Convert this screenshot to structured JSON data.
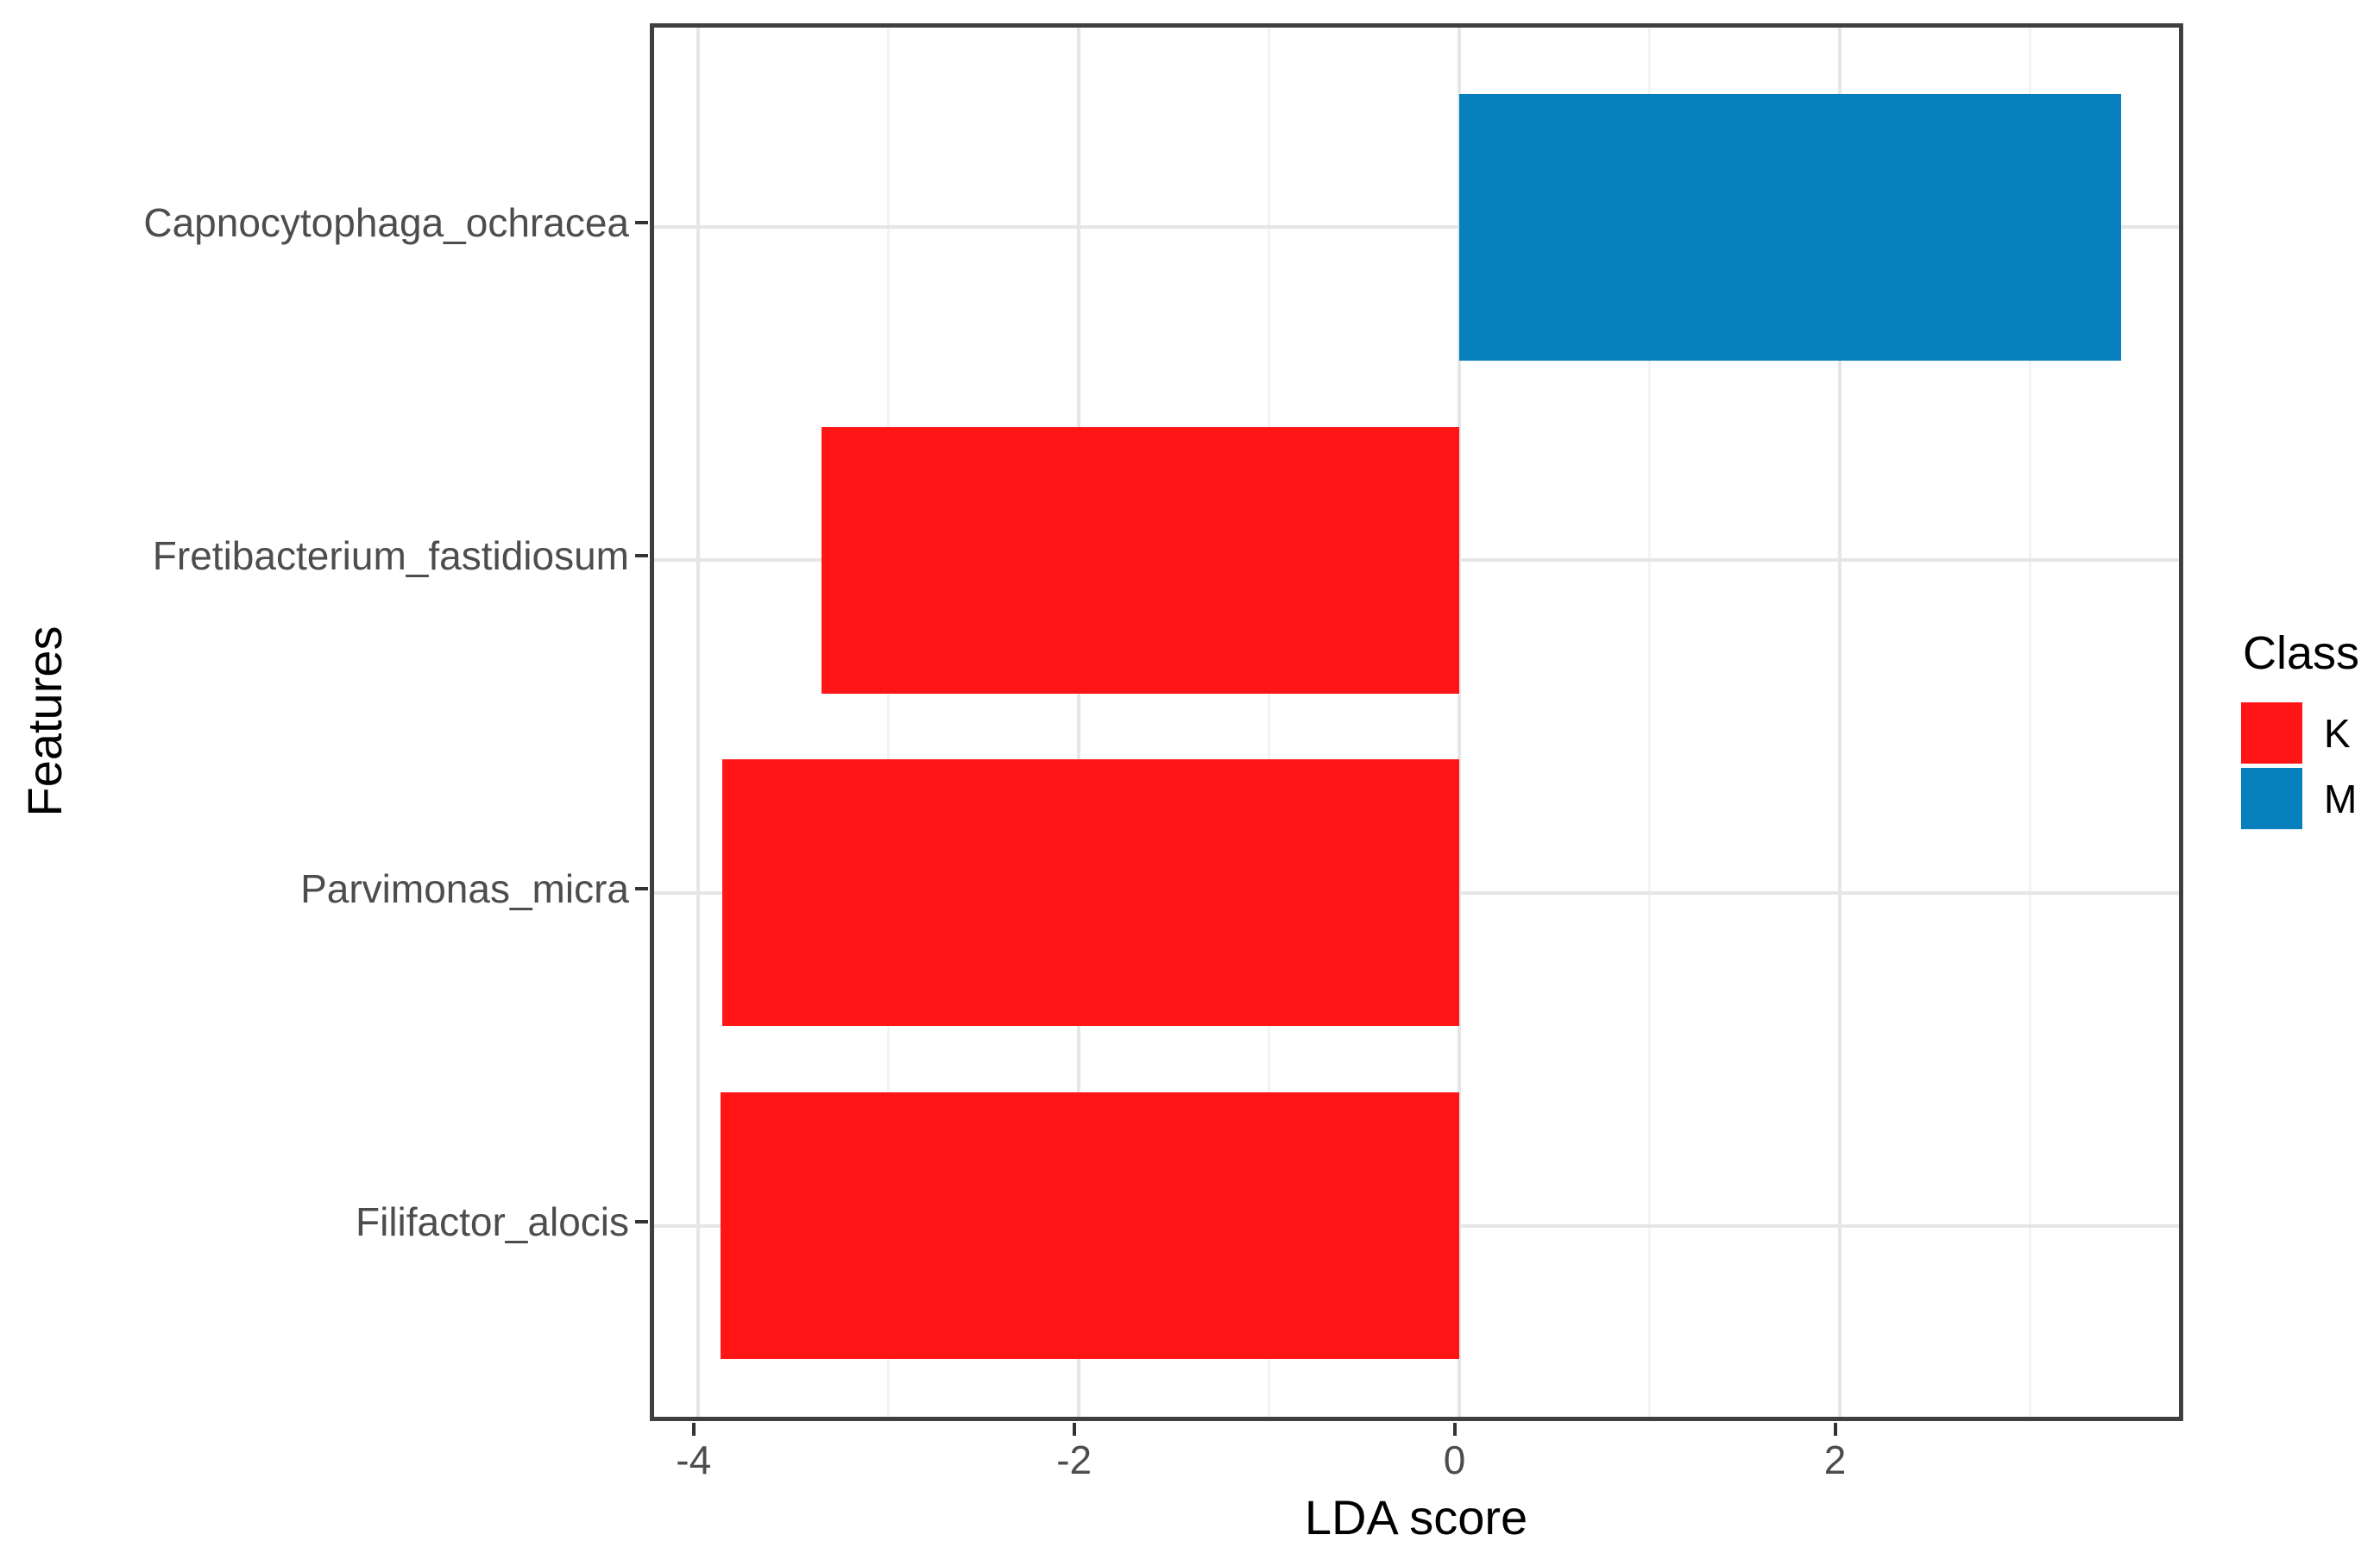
{
  "figure": {
    "x_axis_title": "LDA score",
    "y_axis_title": "Features",
    "legend": {
      "title": "Class",
      "entries": [
        {
          "label": "K",
          "color": "#FF1516"
        },
        {
          "label": "M",
          "color": "#0680BC"
        }
      ]
    }
  },
  "chart_data": {
    "type": "bar",
    "orientation": "horizontal",
    "title": "",
    "xlabel": "LDA score",
    "ylabel": "Features",
    "categories": [
      "Capnocytophaga_ochracea",
      "Fretibacterium_fastidiosum",
      "Parvimonas_micra",
      "Filifactor_alocis"
    ],
    "series": [
      {
        "name": "LDA score",
        "values": [
          3.48,
          -3.35,
          -3.87,
          -3.88
        ],
        "classes": [
          "M",
          "K",
          "K",
          "K"
        ]
      }
    ],
    "class_colors": {
      "K": "#FF1516",
      "M": "#0680BC"
    },
    "legend_title": "Class",
    "legend_entries": [
      "K",
      "M"
    ],
    "legend_position": "right",
    "xlim": [
      -4.23,
      3.83
    ],
    "x_major_ticks": [
      -4,
      -2,
      0,
      2
    ],
    "x_minor_ticks": [
      -3,
      -1,
      1,
      3
    ],
    "grid": true,
    "bar_width_fraction": 0.8,
    "styles": {
      "grid_major_color": "#E6E6E6",
      "grid_minor_color": "#F3F3F3",
      "panel_border_color": "#3F3F3F",
      "tick_color": "#333333",
      "tick_label_color": "#4D4D4D",
      "axis_title_color": "#000000"
    }
  }
}
